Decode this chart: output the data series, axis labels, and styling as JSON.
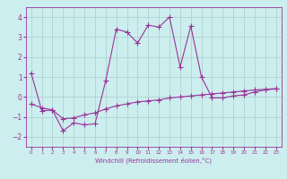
{
  "x": [
    0,
    1,
    2,
    3,
    4,
    5,
    6,
    7,
    8,
    9,
    10,
    11,
    12,
    13,
    14,
    15,
    16,
    17,
    18,
    19,
    20,
    21,
    22,
    23
  ],
  "y_line1": [
    1.2,
    -0.7,
    -0.65,
    -1.7,
    -1.3,
    -1.4,
    -1.35,
    0.8,
    3.4,
    3.25,
    2.7,
    3.6,
    3.5,
    4.0,
    1.5,
    3.55,
    1.0,
    -0.05,
    -0.05,
    0.05,
    0.1,
    0.25,
    0.35,
    0.4
  ],
  "y_line2": [
    -0.35,
    -0.55,
    -0.65,
    -1.1,
    -1.05,
    -0.9,
    -0.8,
    -0.6,
    -0.45,
    -0.35,
    -0.25,
    -0.2,
    -0.15,
    -0.05,
    0.0,
    0.05,
    0.1,
    0.15,
    0.2,
    0.25,
    0.3,
    0.35,
    0.38,
    0.42
  ],
  "line_color": "#993399",
  "bg_color": "#cceeee",
  "grid_color": "#aacccc",
  "xlabel": "Windchill (Refroidissement éolien,°C)",
  "ylim": [
    -2.5,
    4.5
  ],
  "xlim": [
    -0.5,
    23.5
  ],
  "yticks": [
    -2,
    -1,
    0,
    1,
    2,
    3,
    4
  ],
  "xticks": [
    0,
    1,
    2,
    3,
    4,
    5,
    6,
    7,
    8,
    9,
    10,
    11,
    12,
    13,
    14,
    15,
    16,
    17,
    18,
    19,
    20,
    21,
    22,
    23
  ],
  "marker_size": 4,
  "line_width": 0.8,
  "xlabel_fontsize": 5.0,
  "ytick_fontsize": 5.5,
  "xtick_fontsize": 4.0
}
